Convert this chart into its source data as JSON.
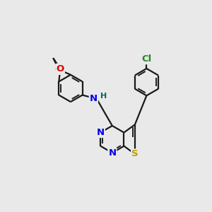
{
  "bg_color": "#e9e9e9",
  "bond_color": "#1a1a1a",
  "bond_width": 1.6,
  "atom_colors": {
    "N": "#0000ee",
    "S": "#b8a000",
    "O": "#dd0000",
    "Cl": "#228B22",
    "H": "#006666",
    "C": "#1a1a1a"
  },
  "font_size": 8.5,
  "fig_size": [
    3.0,
    3.0
  ],
  "dpi": 100
}
